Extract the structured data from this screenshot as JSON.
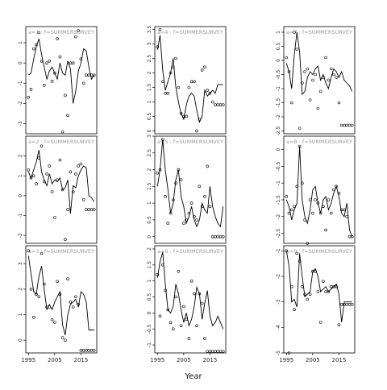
{
  "chart_data": {
    "type": "line",
    "xlabel": "Year",
    "x_ticks": [
      1995,
      2005,
      2015
    ],
    "panels": [
      {
        "title": "a=1 : f=SUMMERSURVEY",
        "ylim": [
          -3.5,
          1.8
        ],
        "y_ticks": [
          -3,
          -2,
          -1,
          0,
          1
        ],
        "x": [
          1995,
          1996,
          1997,
          1998,
          1999,
          2000,
          2001,
          2002,
          2003,
          2004,
          2005,
          2006,
          2007,
          2008,
          2009,
          2010,
          2011,
          2012,
          2013,
          2014,
          2015,
          2016,
          2017,
          2018,
          2019,
          2020
        ],
        "line": [
          -0.6,
          -0.5,
          0.2,
          0.8,
          1.2,
          0.4,
          -0.2,
          -0.8,
          -0.4,
          -0.2,
          -0.5,
          -0.8,
          0.0,
          -0.5,
          -0.6,
          0.1,
          -0.3,
          -2.0,
          -1.4,
          -0.4,
          0.0,
          0.7,
          0.6,
          -0.2,
          -0.8,
          -0.6
        ],
        "points": [
          -1.7,
          -1.3,
          0.7,
          0.9,
          1.5,
          0.1,
          -1.1,
          0.0,
          0.1,
          -0.9,
          -0.5,
          1.2,
          0.3,
          -3.4,
          -1.6,
          -2.6,
          0.0,
          0.0,
          1.3,
          1.6,
          0.2,
          -1.0,
          -0.6,
          -0.6,
          -0.6,
          -0.6
        ]
      },
      {
        "title": "a=4 : f=SUMMERSURVEY",
        "ylim": [
          -0.1,
          3.6
        ],
        "y_ticks": [
          0.0,
          0.5,
          1.0,
          1.5,
          2.0,
          2.5,
          3.0,
          3.5
        ],
        "x": [
          1995,
          1996,
          1997,
          1998,
          1999,
          2000,
          2001,
          2002,
          2003,
          2004,
          2005,
          2006,
          2007,
          2008,
          2009,
          2010,
          2011,
          2012,
          2013,
          2014,
          2015,
          2016,
          2017,
          2018,
          2019,
          2020
        ],
        "line": [
          2.8,
          3.3,
          2.1,
          1.4,
          1.7,
          2.0,
          2.5,
          1.5,
          1.0,
          0.6,
          0.4,
          0.9,
          1.2,
          1.3,
          1.2,
          0.7,
          0.3,
          0.5,
          1.4,
          1.2,
          1.3,
          1.4,
          1.3,
          1.6,
          1.6,
          1.6
        ],
        "points": [
          2.9,
          3.5,
          1.7,
          1.3,
          1.3,
          2.0,
          2.2,
          2.5,
          1.5,
          0.6,
          0.5,
          0.5,
          1.5,
          1.7,
          1.7,
          0.0,
          0.4,
          2.1,
          2.2,
          1.4,
          1.3,
          1.0,
          0.9,
          0.9,
          0.9,
          0.9
        ]
      },
      {
        "title": "a=7 : f=SUMMERSURVEY",
        "ylim": [
          -2.6,
          1.2
        ],
        "y_ticks": [
          -2.5,
          -2.0,
          -1.5,
          -1.0,
          -0.5,
          0.0,
          0.5,
          1.0
        ],
        "x": [
          1995,
          1996,
          1997,
          1998,
          1999,
          2000,
          2001,
          2002,
          2003,
          2004,
          2005,
          2006,
          2007,
          2008,
          2009,
          2010,
          2011,
          2012,
          2013,
          2014,
          2015,
          2016,
          2017,
          2018,
          2019,
          2020
        ],
        "line": [
          -0.1,
          -0.4,
          -1.0,
          0.2,
          1.0,
          0.3,
          -1.2,
          -1.1,
          -0.6,
          -0.4,
          -0.5,
          -0.3,
          -0.2,
          -0.7,
          -0.5,
          -0.8,
          -1.0,
          -0.6,
          -0.3,
          -0.4,
          -0.6,
          -0.4,
          -0.7,
          -0.8,
          -0.9,
          -1.1
        ],
        "points": [
          0.1,
          -0.4,
          -1.5,
          1.0,
          0.4,
          -2.4,
          -0.8,
          -0.4,
          -0.3,
          -1.4,
          -0.7,
          -0.5,
          -1.7,
          -1.1,
          -0.6,
          0.1,
          -0.7,
          -0.3,
          -0.5,
          -0.6,
          -1.5,
          -2.3,
          -2.3,
          -2.3,
          -2.3,
          -2.3
        ]
      },
      {
        "title": "a=2 : f=SUMMERSURVEY",
        "ylim": [
          -2.4,
          3.0
        ],
        "y_ticks": [
          -2,
          -1,
          0,
          1,
          2
        ],
        "x": [
          1995,
          1996,
          1997,
          1998,
          1999,
          2000,
          2001,
          2002,
          2003,
          2004,
          2005,
          2006,
          2007,
          2008,
          2009,
          2010,
          2011,
          2012,
          2013,
          2014,
          2015,
          2016,
          2017,
          2018,
          2019,
          2020
        ],
        "line": [
          1.2,
          0.9,
          1.3,
          1.7,
          2.3,
          1.2,
          0.8,
          0.5,
          1.1,
          0.6,
          0.8,
          0.7,
          0.9,
          0.3,
          0.4,
          0.8,
          -0.9,
          0.5,
          0.4,
          1.0,
          1.3,
          1.5,
          1.4,
          0.0,
          -0.1,
          -0.3
        ],
        "points": [
          1.3,
          0.9,
          1.0,
          0.6,
          1.9,
          2.5,
          0.7,
          1.1,
          1.5,
          0.2,
          -1.1,
          0.8,
          1.8,
          0.3,
          -2.2,
          -0.7,
          1.2,
          0.2,
          1.1,
          1.5,
          1.6,
          -0.2,
          -0.7,
          -0.7,
          -0.7,
          -0.7
        ]
      },
      {
        "title": "a=5 : f=SUMMERSURVEY",
        "ylim": [
          -0.2,
          3.0
        ],
        "y_ticks": [
          0.0,
          0.5,
          1.0,
          1.5,
          2.0,
          2.5,
          3.0
        ],
        "x": [
          1995,
          1996,
          1997,
          1998,
          1999,
          2000,
          2001,
          2002,
          2003,
          2004,
          2005,
          2006,
          2007,
          2008,
          2009,
          2010,
          2011,
          2012,
          2013,
          2014,
          2015,
          2016,
          2017,
          2018,
          2019,
          2020
        ],
        "line": [
          1.5,
          2.0,
          2.9,
          2.0,
          1.4,
          0.7,
          1.0,
          1.7,
          2.0,
          1.2,
          0.9,
          0.4,
          0.6,
          0.9,
          0.5,
          0.3,
          0.5,
          1.0,
          0.8,
          0.7,
          1.5,
          0.9,
          0.6,
          0.4,
          0.3,
          0.9
        ],
        "points": [
          1.9,
          2.0,
          2.9,
          1.2,
          0.4,
          0.7,
          1.1,
          1.6,
          2.0,
          1.7,
          0.4,
          0.5,
          0.7,
          1.0,
          0.6,
          0.5,
          1.5,
          0.9,
          1.2,
          2.1,
          0.9,
          0.0,
          0.0,
          0.0,
          0.0,
          0.0
        ]
      },
      {
        "title": "a=8 : f=SUMMERSURVEY",
        "ylim": [
          -2.8,
          0.4
        ],
        "y_ticks": [
          -2.5,
          -2.0,
          -1.5,
          -1.0,
          -0.5,
          0.0
        ],
        "x": [
          1995,
          1996,
          1997,
          1998,
          1999,
          2000,
          2001,
          2002,
          2003,
          2004,
          2005,
          2006,
          2007,
          2008,
          2009,
          2010,
          2011,
          2012,
          2013,
          2014,
          2015,
          2016,
          2017,
          2018,
          2019,
          2020
        ],
        "line": [
          -1.5,
          -1.7,
          -2.1,
          -1.8,
          -1.6,
          0.1,
          -1.5,
          -2.0,
          -2.2,
          -1.8,
          -1.2,
          -1.1,
          -1.6,
          -1.9,
          -1.5,
          -1.4,
          -1.8,
          -1.6,
          -1.3,
          -1.1,
          -1.4,
          -1.9,
          -2.0,
          -1.6,
          -2.4,
          -2.6
        ],
        "points": [
          -1.4,
          -1.9,
          -1.8,
          -1.7,
          -1.1,
          0.1,
          -1.0,
          -2.1,
          -2.8,
          -1.5,
          -1.9,
          -1.5,
          -1.6,
          -1.9,
          -1.7,
          -2.4,
          -1.5,
          -1.9,
          -1.2,
          -1.1,
          -1.3,
          -1.8,
          -1.8,
          -2.0,
          -2.6,
          -2.6
        ]
      },
      {
        "title": "a=3 : f=SUMMERSURVEY",
        "ylim": [
          -0.5,
          3.7
        ],
        "y_ticks": [
          0,
          1,
          2,
          3
        ],
        "x": [
          1995,
          1996,
          1997,
          1998,
          1999,
          2000,
          2001,
          2002,
          2003,
          2004,
          2005,
          2006,
          2007,
          2008,
          2009,
          2010,
          2011,
          2012,
          2013,
          2014,
          2015,
          2016,
          2017,
          2018,
          2019,
          2020
        ],
        "line": [
          3.3,
          2.6,
          1.9,
          1.8,
          2.5,
          2.9,
          2.0,
          1.2,
          1.4,
          1.2,
          1.5,
          1.7,
          1.9,
          0.6,
          0.2,
          1.0,
          1.4,
          1.5,
          1.6,
          1.3,
          1.9,
          1.8,
          1.5,
          0.4,
          0.4,
          0.4
        ],
        "points": [
          3.5,
          2.0,
          0.9,
          1.8,
          1.7,
          3.4,
          2.2,
          1.3,
          1.3,
          0.8,
          0.7,
          2.3,
          1.8,
          0.1,
          0.0,
          2.4,
          1.5,
          1.3,
          1.7,
          1.4,
          -0.4,
          -0.4,
          -0.4,
          -0.4,
          -0.4,
          -0.4
        ]
      },
      {
        "title": "a=6 : f=SUMMERSURVEY",
        "ylim": [
          -1.25,
          2.1
        ],
        "y_ticks": [
          -1.0,
          -0.5,
          0.0,
          0.5,
          1.0,
          1.5,
          2.0
        ],
        "x": [
          1995,
          1996,
          1997,
          1998,
          1999,
          2000,
          2001,
          2002,
          2003,
          2004,
          2005,
          2006,
          2007,
          2008,
          2009,
          2010,
          2011,
          2012,
          2013,
          2014,
          2015,
          2016,
          2017,
          2018,
          2019,
          2020
        ],
        "line": [
          1.1,
          1.6,
          1.9,
          0.9,
          0.1,
          0.0,
          0.2,
          0.9,
          0.6,
          0.1,
          -0.3,
          0.0,
          -0.4,
          -0.2,
          0.2,
          0.8,
          0.6,
          -0.2,
          0.3,
          0.7,
          -0.1,
          -0.4,
          -0.3,
          -0.1,
          -0.3,
          -0.5
        ],
        "points": [
          1.2,
          -0.1,
          1.5,
          0.7,
          0.1,
          -0.3,
          -0.5,
          0.5,
          1.3,
          -0.4,
          0.2,
          -0.2,
          -0.8,
          1.0,
          0.6,
          -0.4,
          0.6,
          0.3,
          -0.8,
          -1.2,
          -1.2,
          -1.2,
          -1.2,
          -1.2,
          -1.2,
          -1.2
        ]
      },
      {
        "title": "a=9 : f=SUMMERSURVEY",
        "ylim": [
          -5.0,
          -0.8
        ],
        "y_ticks": [
          -5,
          -4,
          -3,
          -2,
          -1
        ],
        "x": [
          1995,
          1996,
          1997,
          1998,
          1999,
          2000,
          2001,
          2002,
          2003,
          2004,
          2005,
          2006,
          2007,
          2008,
          2009,
          2010,
          2011,
          2012,
          2013,
          2014,
          2015,
          2016,
          2017,
          2018,
          2019,
          2020
        ],
        "line": [
          -1.0,
          -1.6,
          -3.0,
          -2.9,
          -3.2,
          -1.1,
          -2.0,
          -2.8,
          -2.7,
          -2.6,
          -1.8,
          -1.7,
          -2.0,
          -2.6,
          -2.5,
          -2.4,
          -2.6,
          -2.5,
          -2.4,
          -2.3,
          -2.7,
          -3.8,
          -3.0,
          -3.0,
          -3.0,
          -3.0
        ],
        "points": [
          -1.0,
          -5.0,
          -2.4,
          -3.3,
          -1.1,
          -1.4,
          -2.4,
          -2.7,
          -2.9,
          -2.7,
          -1.8,
          -1.8,
          -2.6,
          -3.8,
          -2.2,
          -2.6,
          -2.6,
          -2.4,
          -2.4,
          -2.4,
          -3.9,
          -3.1,
          -3.1,
          -3.1,
          -3.1,
          -3.1
        ]
      }
    ]
  }
}
